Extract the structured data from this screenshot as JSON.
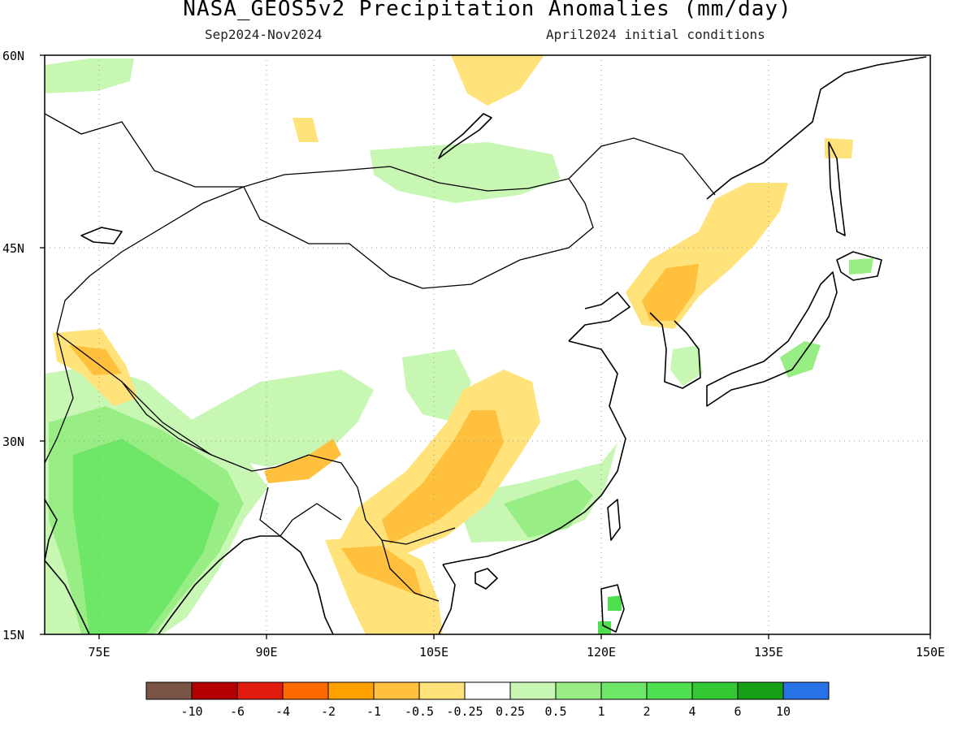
{
  "header": {
    "title": "NASA_GEOS5v2 Precipitation Anomalies (mm/day)",
    "period": "Sep2024-Nov2024",
    "init": "April2024 initial conditions"
  },
  "axes": {
    "lat_labels": [
      "60N",
      "45N",
      "30N",
      "15N"
    ],
    "lon_labels": [
      "75E",
      "90E",
      "105E",
      "120E",
      "135E",
      "150E"
    ]
  },
  "legend": {
    "colors": [
      "#7a5546",
      "#b50000",
      "#e11b0e",
      "#ff6a00",
      "#ffa200",
      "#ffc03d",
      "#ffe27a",
      "#ffffff",
      "#c8f7b4",
      "#98ed84",
      "#6ee667",
      "#4fe04f",
      "#35c835",
      "#15a015",
      "#2672e6"
    ],
    "labels": [
      "-10",
      "-6",
      "-4",
      "-2",
      "-1",
      "-0.5",
      "-0.25",
      "0.25",
      "0.5",
      "1",
      "2",
      "4",
      "6",
      "10"
    ]
  }
}
